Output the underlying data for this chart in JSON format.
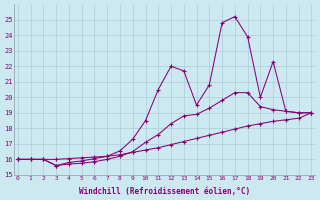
{
  "xlabel": "Windchill (Refroidissement éolien,°C)",
  "bg_color": "#cce8f0",
  "line_color": "#880077",
  "grid_color": "#aaccd8",
  "spine_color": "#8899aa",
  "x_ticks": [
    0,
    1,
    2,
    3,
    4,
    5,
    6,
    7,
    8,
    9,
    10,
    11,
    12,
    13,
    14,
    15,
    16,
    17,
    18,
    19,
    20,
    21,
    22,
    23
  ],
  "ylim": [
    15,
    26
  ],
  "xlim": [
    -0.3,
    23.3
  ],
  "yticks": [
    15,
    16,
    17,
    18,
    19,
    20,
    21,
    22,
    23,
    24,
    25
  ],
  "line1_x": [
    0,
    1,
    2,
    3,
    4,
    5,
    6,
    7,
    8,
    9,
    10,
    11,
    12,
    13,
    14,
    15,
    16,
    17,
    18,
    19,
    20,
    21,
    22,
    23
  ],
  "line1_y": [
    16.0,
    16.0,
    16.0,
    16.0,
    16.05,
    16.1,
    16.15,
    16.2,
    16.3,
    16.45,
    16.6,
    16.75,
    16.95,
    17.15,
    17.35,
    17.55,
    17.75,
    17.95,
    18.15,
    18.3,
    18.45,
    18.55,
    18.65,
    19.0
  ],
  "line2_x": [
    0,
    1,
    2,
    3,
    4,
    5,
    6,
    7,
    8,
    9,
    10,
    11,
    12,
    13,
    14,
    15,
    16,
    17,
    18,
    19,
    20,
    21,
    22,
    23
  ],
  "line2_y": [
    16.0,
    16.0,
    16.0,
    15.6,
    15.7,
    15.75,
    15.85,
    16.0,
    16.2,
    16.5,
    17.1,
    17.6,
    18.3,
    18.8,
    18.9,
    19.3,
    19.8,
    20.3,
    20.3,
    19.4,
    19.2,
    19.1,
    19.0,
    19.0
  ],
  "line3_x": [
    0,
    1,
    2,
    3,
    4,
    5,
    6,
    7,
    8,
    9,
    10,
    11,
    12,
    13,
    14,
    15,
    16,
    17,
    18,
    19,
    20,
    21,
    22,
    23
  ],
  "line3_y": [
    16.0,
    16.0,
    16.0,
    15.6,
    15.8,
    15.9,
    16.05,
    16.2,
    16.55,
    17.3,
    18.5,
    20.5,
    22.0,
    21.7,
    19.5,
    20.8,
    24.8,
    25.2,
    23.9,
    20.0,
    22.3,
    19.1,
    19.0,
    19.0
  ]
}
